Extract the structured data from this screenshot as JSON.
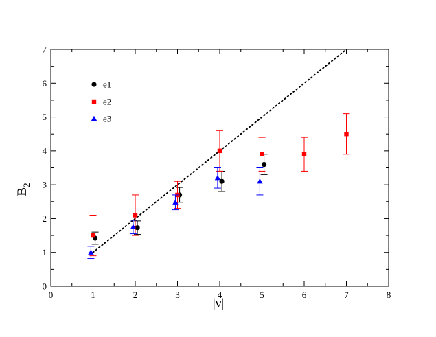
{
  "chart_data": {
    "type": "scatter",
    "xlabel": "|ν|",
    "ylabel_main": "B",
    "ylabel_sub": "2",
    "xlim": [
      0,
      8
    ],
    "ylim": [
      0,
      7
    ],
    "xticks": [
      "0",
      "1",
      "2",
      "3",
      "4",
      "5",
      "6",
      "7",
      "8"
    ],
    "yticks": [
      "0",
      "1",
      "2",
      "3",
      "4",
      "5",
      "6",
      "7"
    ],
    "grid": false,
    "legend_placement": "top-left",
    "reference_line": {
      "style": "dotted",
      "color": "#000000",
      "points": [
        [
          1,
          1
        ],
        [
          7,
          7
        ]
      ]
    },
    "series": [
      {
        "name": "e1",
        "marker": "circle",
        "color": "#000000",
        "points": [
          {
            "x": 1.05,
            "y": 1.42,
            "err": 0.18
          },
          {
            "x": 2.05,
            "y": 1.73,
            "err": 0.2
          },
          {
            "x": 3.05,
            "y": 2.7,
            "err": 0.22
          },
          {
            "x": 4.05,
            "y": 3.1,
            "err": 0.3
          },
          {
            "x": 5.05,
            "y": 3.6,
            "err": 0.3
          }
        ]
      },
      {
        "name": "e2",
        "marker": "square",
        "color": "#ff0000",
        "points": [
          {
            "x": 1.0,
            "y": 1.5,
            "err": 0.6
          },
          {
            "x": 2.0,
            "y": 2.1,
            "err": 0.6
          },
          {
            "x": 3.0,
            "y": 2.7,
            "err": 0.4
          },
          {
            "x": 4.0,
            "y": 4.0,
            "err": 0.6
          },
          {
            "x": 5.0,
            "y": 3.9,
            "err": 0.5
          },
          {
            "x": 6.0,
            "y": 3.9,
            "err": 0.5
          },
          {
            "x": 7.0,
            "y": 4.5,
            "err": 0.6
          }
        ]
      },
      {
        "name": "e3",
        "marker": "triangle",
        "color": "#0000ff",
        "points": [
          {
            "x": 0.95,
            "y": 1.0,
            "err": 0.18
          },
          {
            "x": 1.95,
            "y": 1.75,
            "err": 0.2
          },
          {
            "x": 2.95,
            "y": 2.48,
            "err": 0.22
          },
          {
            "x": 3.95,
            "y": 3.2,
            "err": 0.3
          },
          {
            "x": 4.95,
            "y": 3.1,
            "err": 0.4
          }
        ]
      }
    ]
  }
}
